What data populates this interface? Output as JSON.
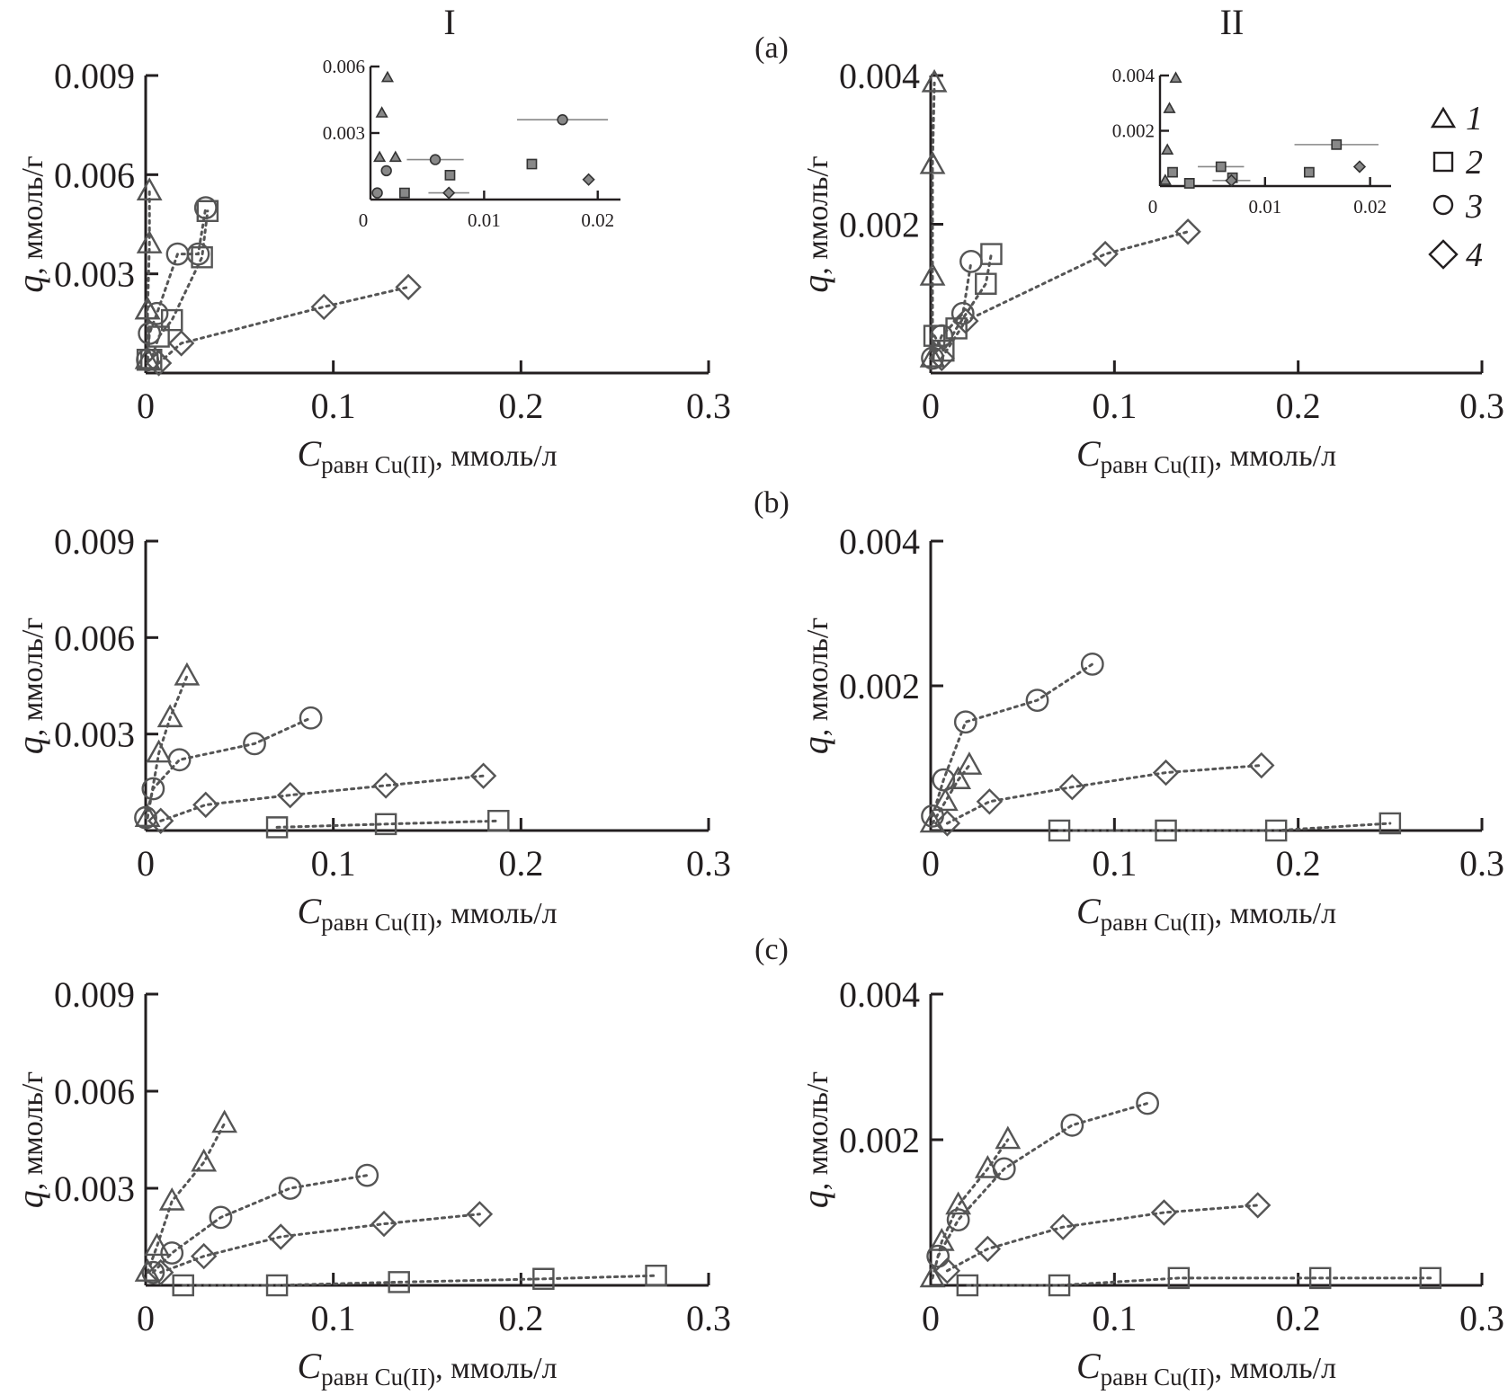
{
  "figure": {
    "column_titles": [
      "I",
      "II"
    ],
    "row_labels": [
      "(a)",
      "(b)",
      "(c)"
    ],
    "legend": [
      {
        "marker": "triangle",
        "label": "1"
      },
      {
        "marker": "square",
        "label": "2"
      },
      {
        "marker": "circle",
        "label": "3"
      },
      {
        "marker": "diamond",
        "label": "4"
      }
    ]
  },
  "chart_data": [
    {
      "id": "a-I",
      "type": "scatter",
      "row": "(a)",
      "column": "I",
      "xlabel_main": "C",
      "xlabel_sub": "равн Cu(II)",
      "xlabel_unit": ", ммоль/л",
      "ylabel_main": "q",
      "ylabel_unit": ", ммоль/г",
      "xlim": [
        0,
        0.3
      ],
      "ylim": [
        0,
        0.009
      ],
      "xticks": [
        0,
        0.1,
        0.2,
        0.3
      ],
      "xtick_labels": [
        "0",
        "0.1",
        "0.2",
        "0.3"
      ],
      "yticks": [
        0.003,
        0.006,
        0.009
      ],
      "ytick_labels": [
        "0.003",
        "0.006",
        "0.009"
      ],
      "grid": false,
      "series": [
        {
          "name": "1",
          "marker": "triangle",
          "x": [
            0.001,
            0.001,
            0.001,
            0.002,
            0.002
          ],
          "y": [
            0.0004,
            0.0019,
            0.0019,
            0.0039,
            0.0055
          ]
        },
        {
          "name": "2",
          "marker": "square",
          "x": [
            0.001,
            0.003,
            0.007,
            0.014,
            0.03,
            0.033
          ],
          "y": [
            0.0004,
            0.0004,
            0.0011,
            0.0016,
            0.0035,
            0.0049
          ]
        },
        {
          "name": "3",
          "marker": "circle",
          "x": [
            0.001,
            0.002,
            0.006,
            0.017,
            0.028,
            0.032
          ],
          "y": [
            0.0004,
            0.0012,
            0.0018,
            0.0036,
            0.0036,
            0.005
          ]
        },
        {
          "name": "4",
          "marker": "diamond",
          "x": [
            0.007,
            0.019,
            0.095,
            0.14
          ],
          "y": [
            0.0003,
            0.0009,
            0.002,
            0.0026
          ]
        }
      ],
      "inset": {
        "xlim": [
          0,
          0.022
        ],
        "ylim": [
          0,
          0.006
        ],
        "xticks": [
          0,
          0.01,
          0.02
        ],
        "xtick_labels": [
          "0",
          "0.01",
          "0.02"
        ],
        "yticks": [
          0.003,
          0.006
        ],
        "ytick_labels": [
          "0.003",
          "0.006"
        ],
        "points": [
          {
            "marker": "triangle",
            "x": 0.0015,
            "y": 0.0055
          },
          {
            "marker": "triangle",
            "x": 0.001,
            "y": 0.0039
          },
          {
            "marker": "triangle",
            "x": 0.0008,
            "y": 0.0019
          },
          {
            "marker": "triangle",
            "x": 0.0022,
            "y": 0.0019
          },
          {
            "marker": "circle",
            "x": 0.0014,
            "y": 0.0013
          },
          {
            "marker": "circle",
            "x": 0.0006,
            "y": 0.0003
          },
          {
            "marker": "circle",
            "x": 0.0057,
            "y": 0.0018,
            "xerr": 0.0025
          },
          {
            "marker": "circle",
            "x": 0.0169,
            "y": 0.0036,
            "xerr": 0.004
          },
          {
            "marker": "square",
            "x": 0.003,
            "y": 0.0003
          },
          {
            "marker": "square",
            "x": 0.007,
            "y": 0.0011
          },
          {
            "marker": "square",
            "x": 0.0142,
            "y": 0.0016
          },
          {
            "marker": "diamond",
            "x": 0.0069,
            "y": 0.0003,
            "xerr": 0.0018
          },
          {
            "marker": "diamond",
            "x": 0.0192,
            "y": 0.0009
          }
        ]
      }
    },
    {
      "id": "a-II",
      "type": "scatter",
      "row": "(a)",
      "column": "II",
      "xlabel_main": "C",
      "xlabel_sub": "равн Cu(II)",
      "xlabel_unit": ", ммоль/л",
      "ylabel_main": "q",
      "ylabel_unit": ", ммоль/г",
      "xlim": [
        0,
        0.3
      ],
      "ylim": [
        0,
        0.004
      ],
      "xticks": [
        0,
        0.1,
        0.2,
        0.3
      ],
      "xtick_labels": [
        "0",
        "0.1",
        "0.2",
        "0.3"
      ],
      "yticks": [
        0.002,
        0.004
      ],
      "ytick_labels": [
        "0.002",
        "0.004"
      ],
      "grid": false,
      "series": [
        {
          "name": "1",
          "marker": "triangle",
          "x": [
            0.001,
            0.001,
            0.001,
            0.002
          ],
          "y": [
            0.0002,
            0.0013,
            0.0028,
            0.0039
          ]
        },
        {
          "name": "2",
          "marker": "square",
          "x": [
            0.002,
            0.007,
            0.014,
            0.03,
            0.033
          ],
          "y": [
            0.0005,
            0.0003,
            0.0006,
            0.0012,
            0.0016
          ]
        },
        {
          "name": "3",
          "marker": "circle",
          "x": [
            0.001,
            0.006,
            0.0175,
            0.022
          ],
          "y": [
            0.0002,
            0.0005,
            0.0008,
            0.0015
          ]
        },
        {
          "name": "4",
          "marker": "diamond",
          "x": [
            0.006,
            0.019,
            0.095,
            0.14
          ],
          "y": [
            0.0002,
            0.0007,
            0.0016,
            0.0019
          ]
        }
      ],
      "inset": {
        "xlim": [
          0,
          0.022
        ],
        "ylim": [
          0,
          0.004
        ],
        "xticks": [
          0,
          0.01,
          0.02
        ],
        "xtick_labels": [
          "0",
          "0.01",
          "0.02"
        ],
        "yticks": [
          0.002,
          0.004
        ],
        "ytick_labels": [
          "0.002",
          "0.004"
        ],
        "points": [
          {
            "marker": "triangle",
            "x": 0.0015,
            "y": 0.0039
          },
          {
            "marker": "triangle",
            "x": 0.0009,
            "y": 0.0028
          },
          {
            "marker": "triangle",
            "x": 0.0007,
            "y": 0.0013
          },
          {
            "marker": "triangle",
            "x": 0.0005,
            "y": 0.0002
          },
          {
            "marker": "square",
            "x": 0.0012,
            "y": 0.0005
          },
          {
            "marker": "square",
            "x": 0.0028,
            "y": 0.0001
          },
          {
            "marker": "square",
            "x": 0.0058,
            "y": 0.0007,
            "xerr": 0.0022
          },
          {
            "marker": "square",
            "x": 0.0069,
            "y": 0.0003
          },
          {
            "marker": "square",
            "x": 0.0142,
            "y": 0.0005
          },
          {
            "marker": "square",
            "x": 0.0168,
            "y": 0.0015,
            "xerr": 0.004
          },
          {
            "marker": "diamond",
            "x": 0.0068,
            "y": 0.0002,
            "xerr": 0.0018
          },
          {
            "marker": "diamond",
            "x": 0.019,
            "y": 0.0007
          }
        ]
      }
    },
    {
      "id": "b-I",
      "type": "scatter",
      "row": "(b)",
      "column": "I",
      "xlabel_main": "C",
      "xlabel_sub": "равн Cu(II)",
      "xlabel_unit": ", ммоль/л",
      "ylabel_main": "q",
      "ylabel_unit": ", ммоль/г",
      "xlim": [
        0,
        0.3
      ],
      "ylim": [
        0,
        0.009
      ],
      "xticks": [
        0,
        0.1,
        0.2,
        0.3
      ],
      "xtick_labels": [
        "0",
        "0.1",
        "0.2",
        "0.3"
      ],
      "yticks": [
        0.003,
        0.006,
        0.009
      ],
      "ytick_labels": [
        "0.003",
        "0.006",
        "0.009"
      ],
      "grid": false,
      "series": [
        {
          "name": "1",
          "marker": "triangle",
          "x": [
            0.001,
            0.007,
            0.013,
            0.022
          ],
          "y": [
            0.0004,
            0.0024,
            0.0035,
            0.0048
          ]
        },
        {
          "name": "2",
          "marker": "square",
          "x": [
            0.07,
            0.128,
            0.188
          ],
          "y": [
            0.0001,
            0.0002,
            0.0003
          ]
        },
        {
          "name": "3",
          "marker": "circle",
          "x": [
            0,
            0.004,
            0.018,
            0.058,
            0.088
          ],
          "y": [
            0.0004,
            0.0013,
            0.0022,
            0.0027,
            0.0035
          ]
        },
        {
          "name": "4",
          "marker": "diamond",
          "x": [
            0.008,
            0.032,
            0.077,
            0.128,
            0.18
          ],
          "y": [
            0.0003,
            0.0008,
            0.0011,
            0.0014,
            0.0017
          ]
        }
      ]
    },
    {
      "id": "b-II",
      "type": "scatter",
      "row": "(b)",
      "column": "II",
      "xlabel_main": "C",
      "xlabel_sub": "равн Cu(II)",
      "xlabel_unit": ", ммоль/л",
      "ylabel_main": "q",
      "ylabel_unit": ", ммоль/г",
      "xlim": [
        0,
        0.3
      ],
      "ylim": [
        0,
        0.004
      ],
      "xticks": [
        0,
        0.1,
        0.2,
        0.3
      ],
      "xtick_labels": [
        "0",
        "0.1",
        "0.2",
        "0.3"
      ],
      "yticks": [
        0.002,
        0.004
      ],
      "ytick_labels": [
        "0.002",
        "0.004"
      ],
      "grid": false,
      "series": [
        {
          "name": "1",
          "marker": "triangle",
          "x": [
            0.001,
            0.008,
            0.015,
            0.021
          ],
          "y": [
            0.0001,
            0.0004,
            0.0007,
            0.0009
          ]
        },
        {
          "name": "2",
          "marker": "square",
          "x": [
            0.07,
            0.128,
            0.188,
            0.25
          ],
          "y": [
            0.0,
            0.0,
            0.0,
            0.0001
          ]
        },
        {
          "name": "3",
          "marker": "circle",
          "x": [
            0.001,
            0.007,
            0.019,
            0.058,
            0.088
          ],
          "y": [
            0.0002,
            0.0007,
            0.0015,
            0.0018,
            0.0023
          ]
        },
        {
          "name": "4",
          "marker": "diamond",
          "x": [
            0.009,
            0.032,
            0.077,
            0.128,
            0.18
          ],
          "y": [
            0.0001,
            0.0004,
            0.0006,
            0.0008,
            0.0009
          ]
        }
      ]
    },
    {
      "id": "c-I",
      "type": "scatter",
      "row": "(c)",
      "column": "I",
      "xlabel_main": "C",
      "xlabel_sub": "равн Cu(II)",
      "xlabel_unit": ", ммоль/л",
      "ylabel_main": "q",
      "ylabel_unit": ", ммоль/г",
      "xlim": [
        0,
        0.3
      ],
      "ylim": [
        0,
        0.009
      ],
      "xticks": [
        0,
        0.1,
        0.2,
        0.3
      ],
      "xtick_labels": [
        "0",
        "0.1",
        "0.2",
        "0.3"
      ],
      "yticks": [
        0.003,
        0.006,
        0.009
      ],
      "ytick_labels": [
        "0.003",
        "0.006",
        "0.009"
      ],
      "grid": false,
      "series": [
        {
          "name": "1",
          "marker": "triangle",
          "x": [
            0.001,
            0.006,
            0.014,
            0.031,
            0.042
          ],
          "y": [
            0.0004,
            0.0012,
            0.0026,
            0.0038,
            0.005
          ]
        },
        {
          "name": "2",
          "marker": "square",
          "x": [
            0.02,
            0.07,
            0.135,
            0.212,
            0.272
          ],
          "y": [
            0.0,
            0.0,
            0.0001,
            0.0002,
            0.0003
          ]
        },
        {
          "name": "3",
          "marker": "circle",
          "x": [
            0.004,
            0.014,
            0.04,
            0.077,
            0.118
          ],
          "y": [
            0.0004,
            0.001,
            0.0021,
            0.003,
            0.0034
          ]
        },
        {
          "name": "4",
          "marker": "diamond",
          "x": [
            0.008,
            0.031,
            0.072,
            0.127,
            0.178
          ],
          "y": [
            0.0004,
            0.0009,
            0.0015,
            0.0019,
            0.0022
          ]
        }
      ]
    },
    {
      "id": "c-II",
      "type": "scatter",
      "row": "(c)",
      "column": "II",
      "xlabel_main": "C",
      "xlabel_sub": "равн Cu(II)",
      "xlabel_unit": ", ммоль/л",
      "ylabel_main": "q",
      "ylabel_unit": ", ммоль/г",
      "xlim": [
        0,
        0.3
      ],
      "ylim": [
        0,
        0.004
      ],
      "xticks": [
        0,
        0.1,
        0.2,
        0.3
      ],
      "xtick_labels": [
        "0",
        "0.1",
        "0.2",
        "0.3"
      ],
      "yticks": [
        0.002,
        0.004
      ],
      "ytick_labels": [
        "0.002",
        "0.004"
      ],
      "grid": false,
      "series": [
        {
          "name": "1",
          "marker": "triangle",
          "x": [
            0.001,
            0.006,
            0.015,
            0.031,
            0.042
          ],
          "y": [
            0.0001,
            0.0006,
            0.0011,
            0.0016,
            0.002
          ]
        },
        {
          "name": "2",
          "marker": "square",
          "x": [
            0.02,
            0.07,
            0.135,
            0.212,
            0.272
          ],
          "y": [
            0.0,
            0.0,
            0.0001,
            0.0001,
            0.0001
          ]
        },
        {
          "name": "3",
          "marker": "circle",
          "x": [
            0.004,
            0.015,
            0.04,
            0.077,
            0.118
          ],
          "y": [
            0.0004,
            0.0009,
            0.0016,
            0.0022,
            0.0025
          ]
        },
        {
          "name": "4",
          "marker": "diamond",
          "x": [
            0.009,
            0.031,
            0.072,
            0.127,
            0.178
          ],
          "y": [
            0.0002,
            0.0005,
            0.0008,
            0.001,
            0.0011
          ]
        }
      ]
    }
  ]
}
